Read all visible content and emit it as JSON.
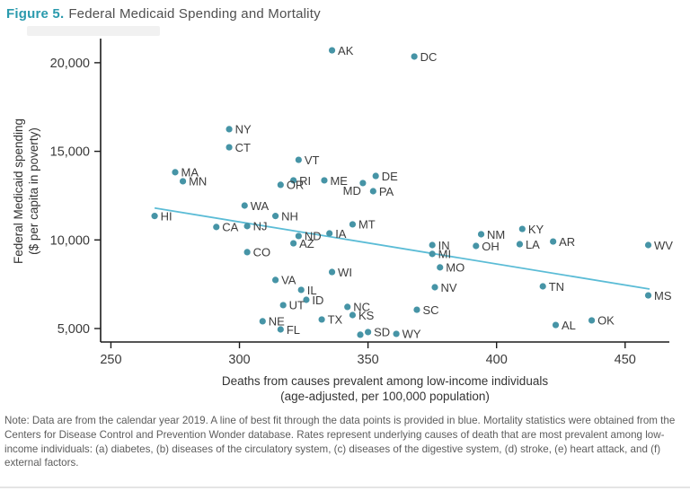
{
  "title": {
    "figure_label": "Figure 5.",
    "text": "Federal Medicaid Spending and Mortality"
  },
  "note": {
    "text": "Note: Data are from the calendar year 2019. A line of best fit through the data points is provided in blue. Mortality statistics were obtained from the Centers for Disease Control and Prevention Wonder database. Rates represent underlying causes of death that are most prevalent among low-income individuals: (a) diabetes, (b) diseases of the circulatory system, (c) diseases of the digestive system, (d) stroke, (e) heart attack, and (f) external factors."
  },
  "chart_data": {
    "type": "scatter",
    "title": "Federal Medicaid Spending and Mortality",
    "xlabel_line1": "Deaths from causes prevalent among low-income individuals",
    "xlabel_line2": "(age-adjusted, per 100,000 population)",
    "ylabel_line1": "Federal Medicaid spending",
    "ylabel_line2": "($ per capita in poverty)",
    "xlim": [
      246,
      467.2
    ],
    "ylim": [
      4240,
      21260
    ],
    "x_ticks": [
      250,
      300,
      350,
      400,
      450
    ],
    "x_tick_labels": [
      "250",
      "300",
      "350",
      "400",
      "450"
    ],
    "y_ticks": [
      5000,
      10000,
      15000,
      20000
    ],
    "y_tick_labels": [
      "5,000",
      "10,000",
      "15,000",
      "20,000"
    ],
    "grid": false,
    "legend": "none",
    "point_color": "#4694a6",
    "label_color": "#3c3c3c",
    "axis_color": "#1c1c1c",
    "trend_line": {
      "x1": 267,
      "y1": 11800,
      "x2": 459.5,
      "y2": 7230,
      "color": "#5bbcd6"
    },
    "points": [
      {
        "label": "AK",
        "x": 336,
        "y": 20700
      },
      {
        "label": "DC",
        "x": 368,
        "y": 20350
      },
      {
        "label": "NY",
        "x": 296,
        "y": 16250
      },
      {
        "label": "CT",
        "x": 296,
        "y": 15230
      },
      {
        "label": "VT",
        "x": 323,
        "y": 14520
      },
      {
        "label": "MA",
        "x": 275,
        "y": 13820
      },
      {
        "label": "MN",
        "x": 278,
        "y": 13310
      },
      {
        "label": "RI",
        "x": 321,
        "y": 13360
      },
      {
        "label": "ME",
        "x": 333,
        "y": 13360
      },
      {
        "label": "OR",
        "x": 316,
        "y": 13110
      },
      {
        "label": "DE",
        "x": 353,
        "y": 13610
      },
      {
        "label": "MD",
        "x": 348,
        "y": 13210,
        "anchor": "left-below"
      },
      {
        "label": "PA",
        "x": 352,
        "y": 12750
      },
      {
        "label": "WA",
        "x": 302,
        "y": 11940
      },
      {
        "label": "HI",
        "x": 267,
        "y": 11350
      },
      {
        "label": "NH",
        "x": 314,
        "y": 11350
      },
      {
        "label": "CA",
        "x": 291,
        "y": 10730
      },
      {
        "label": "NJ",
        "x": 303,
        "y": 10780
      },
      {
        "label": "MT",
        "x": 344,
        "y": 10880
      },
      {
        "label": "ND",
        "x": 323,
        "y": 10220
      },
      {
        "label": "IA",
        "x": 335,
        "y": 10370
      },
      {
        "label": "AZ",
        "x": 321,
        "y": 9810
      },
      {
        "label": "CO",
        "x": 303,
        "y": 9310
      },
      {
        "label": "NM",
        "x": 394,
        "y": 10320
      },
      {
        "label": "KY",
        "x": 410,
        "y": 10620
      },
      {
        "label": "OH",
        "x": 392,
        "y": 9660
      },
      {
        "label": "LA",
        "x": 409,
        "y": 9760
      },
      {
        "label": "AR",
        "x": 422,
        "y": 9910
      },
      {
        "label": "WV",
        "x": 459,
        "y": 9710
      },
      {
        "label": "IN",
        "x": 375,
        "y": 9710
      },
      {
        "label": "MI",
        "x": 375,
        "y": 9210
      },
      {
        "label": "MO",
        "x": 378,
        "y": 8450
      },
      {
        "label": "WI",
        "x": 336,
        "y": 8190
      },
      {
        "label": "NV",
        "x": 376,
        "y": 7330
      },
      {
        "label": "TN",
        "x": 418,
        "y": 7380
      },
      {
        "label": "MS",
        "x": 459,
        "y": 6870
      },
      {
        "label": "VA",
        "x": 314,
        "y": 7740
      },
      {
        "label": "IL",
        "x": 324,
        "y": 7180
      },
      {
        "label": "ID",
        "x": 326,
        "y": 6620
      },
      {
        "label": "UT",
        "x": 317,
        "y": 6320
      },
      {
        "label": "NC",
        "x": 342,
        "y": 6220
      },
      {
        "label": "KS",
        "x": 344,
        "y": 5760
      },
      {
        "label": "SC",
        "x": 369,
        "y": 6060
      },
      {
        "label": "TX",
        "x": 332,
        "y": 5510
      },
      {
        "label": "NE",
        "x": 309,
        "y": 5410
      },
      {
        "label": "FL",
        "x": 316,
        "y": 4950
      },
      {
        "label": "SD",
        "x": 350,
        "y": 4800
      },
      {
        "label": "WY",
        "x": 361,
        "y": 4700
      },
      {
        "label": "",
        "x": 347,
        "y": 4650
      },
      {
        "label": "AL",
        "x": 423,
        "y": 5200
      },
      {
        "label": "OK",
        "x": 437,
        "y": 5460
      }
    ]
  }
}
